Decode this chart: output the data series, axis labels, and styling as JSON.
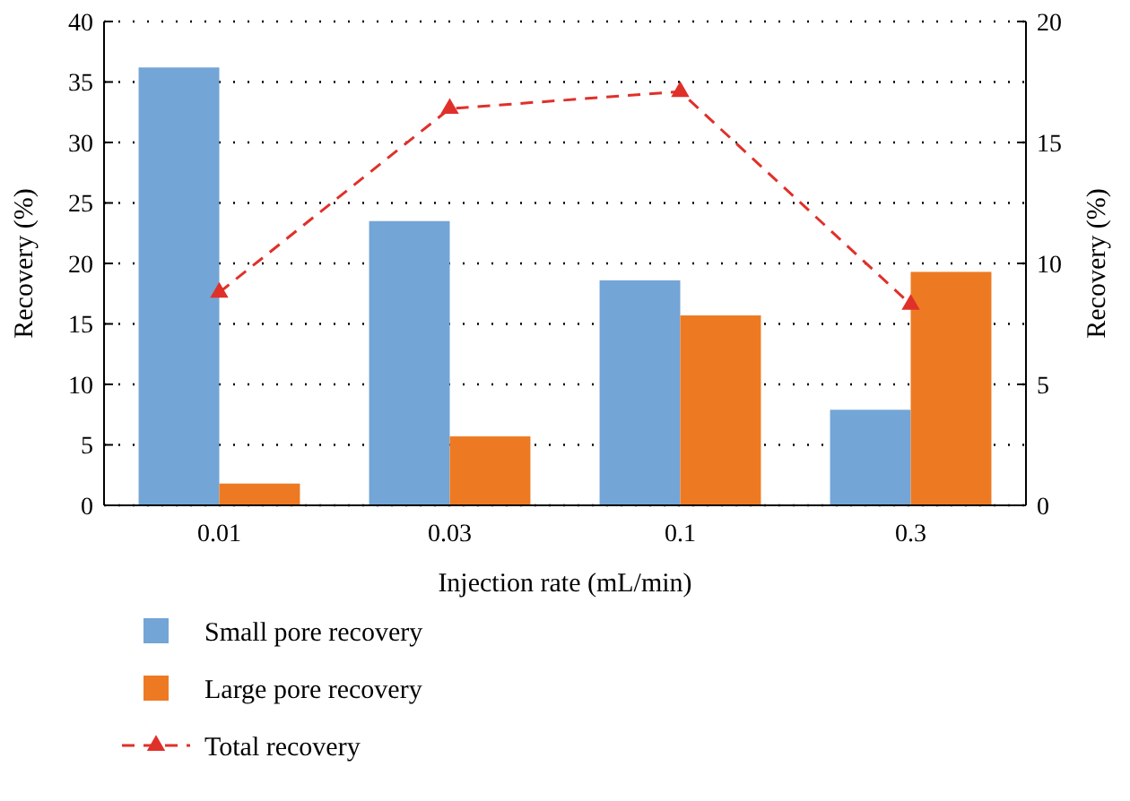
{
  "chart_data": {
    "type": "bar",
    "xlabel": "Injection rate (mL/min)",
    "ylabel": "Recovery (%)",
    "y2label": "Recovery (%)",
    "categories": [
      "0.01",
      "0.03",
      "0.1",
      "0.3"
    ],
    "series": [
      {
        "name": "Small pore recovery",
        "color": "#73a5d6",
        "values": [
          36.2,
          23.5,
          18.6,
          7.9
        ]
      },
      {
        "name": "Large pore recovery",
        "color": "#ed7a22",
        "values": [
          1.8,
          5.7,
          15.7,
          19.3
        ]
      },
      {
        "name": "Total recovery",
        "type": "line",
        "axis": "y2",
        "color": "#e0302a",
        "values": [
          8.8,
          16.4,
          17.1,
          8.3
        ],
        "marker": "triangle",
        "line_style": "dashed"
      }
    ],
    "ylim": [
      0,
      40
    ],
    "yticks": [
      0,
      5,
      10,
      15,
      20,
      25,
      30,
      35,
      40
    ],
    "y2lim": [
      0,
      20
    ],
    "y2ticks": [
      0,
      5,
      10,
      15,
      20
    ],
    "grid": "y",
    "legend": "bottom"
  }
}
